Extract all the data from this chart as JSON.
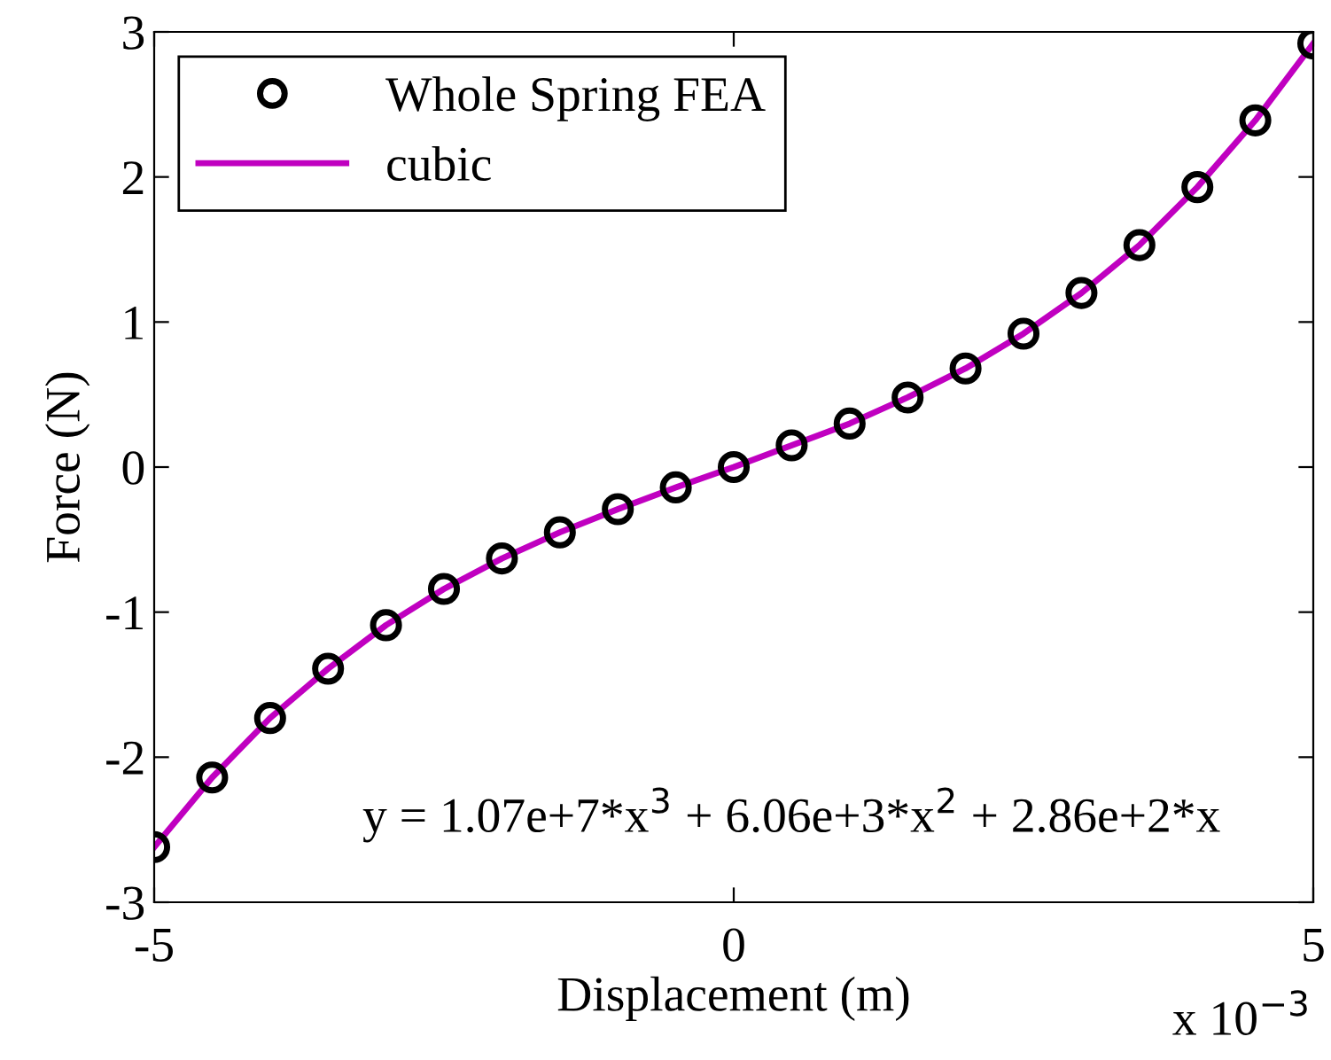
{
  "chart_data": {
    "type": "scatter",
    "xlabel": "Displacement (m)",
    "ylabel": "Force (N)",
    "x": [
      -5,
      -4.5,
      -4,
      -3.5,
      -3,
      -2.5,
      -2,
      -1.5,
      -1,
      -0.5,
      0,
      0.5,
      1,
      1.5,
      2,
      2.5,
      3,
      3.5,
      4,
      4.5,
      5
    ],
    "series": [
      {
        "name": "Whole Spring FEA",
        "color": "#000000",
        "marker": "circle",
        "values": [
          -2.62,
          -2.14,
          -1.73,
          -1.39,
          -1.09,
          -0.84,
          -0.63,
          -0.45,
          -0.29,
          -0.14,
          0,
          0.15,
          0.3,
          0.48,
          0.68,
          0.92,
          1.2,
          1.53,
          1.93,
          2.39,
          2.92
        ]
      },
      {
        "name": "cubic",
        "type": "line",
        "color": "#c000c0",
        "line_style": "solid",
        "marker": "none",
        "values": [
          -2.62,
          -2.14,
          -1.73,
          -1.39,
          -1.09,
          -0.84,
          -0.63,
          -0.45,
          -0.29,
          -0.14,
          0,
          0.15,
          0.3,
          0.48,
          0.68,
          0.92,
          1.2,
          1.53,
          1.93,
          2.39,
          2.92
        ]
      }
    ],
    "xlim": [
      -5,
      5
    ],
    "xticks": [
      {
        "value": -5,
        "label": "-5"
      },
      {
        "value": 0,
        "label": "0"
      },
      {
        "value": 5,
        "label": "5"
      }
    ],
    "ylim": [
      -3,
      3
    ],
    "yticks": [
      {
        "value": -3,
        "label": "-3"
      },
      {
        "value": -2,
        "label": "-2"
      },
      {
        "value": -1,
        "label": "-1"
      },
      {
        "value": 0,
        "label": "0"
      },
      {
        "value": 1,
        "label": "1"
      },
      {
        "value": 2,
        "label": "2"
      },
      {
        "value": 3,
        "label": "3"
      }
    ],
    "annotations": [
      "y = 1.07e+7*x$^{3}$ + 6.06e+3*x$^{2}$ + 2.86e+2*x",
      "x 10$^{−3}$"
    ],
    "legend": "top left",
    "grid": false
  }
}
